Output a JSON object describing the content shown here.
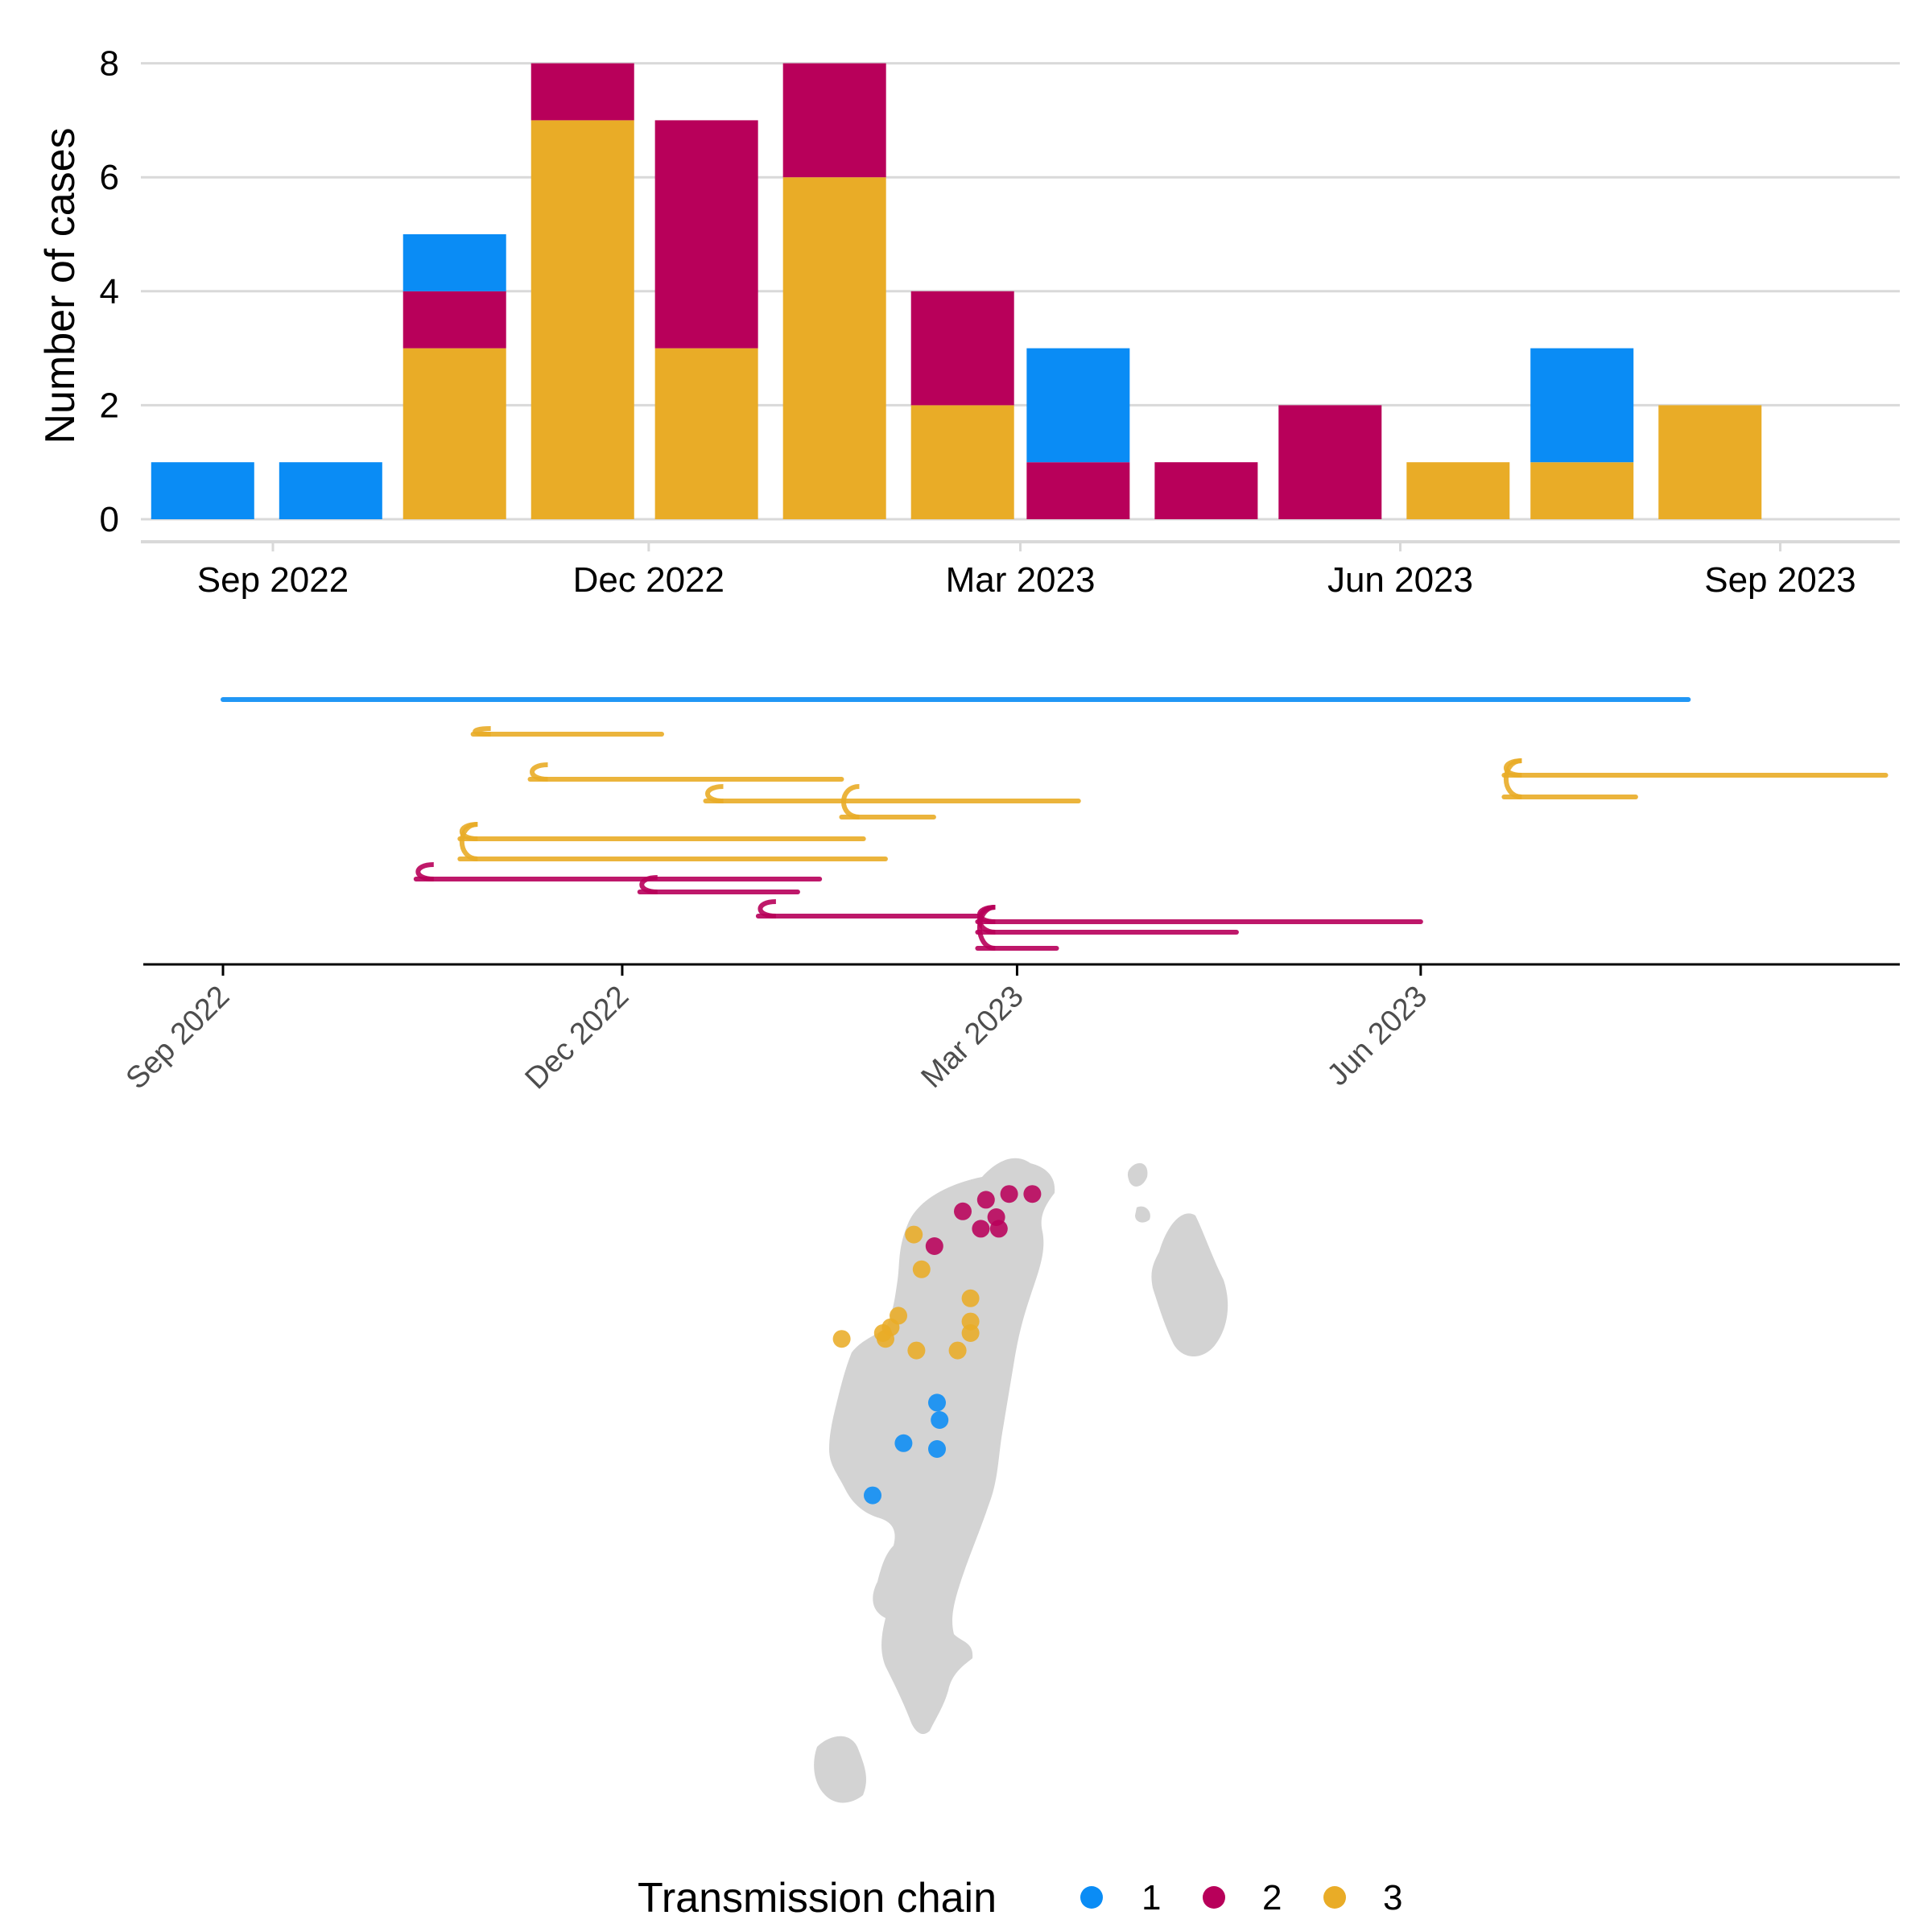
{
  "colors": {
    "chain_1": "#0A8CF5",
    "chain_2": "#B8005A",
    "chain_3": "#E9AC27",
    "grid": "#D9D9D9",
    "land": "#D3D3D3"
  },
  "chart_data": [
    {
      "type": "bar",
      "stacked": true,
      "ylabel": "Number of cases",
      "ylim": [
        0,
        8
      ],
      "y_ticks": [
        "0",
        "2",
        "4",
        "6",
        "8"
      ],
      "x_tick_labels": [
        "Sep 2022",
        "Dec 2022",
        "Mar 2023",
        "Jun 2023",
        "Sep 2023"
      ],
      "categories": [
        "2022-08-15",
        "2022-09-15",
        "2022-10-15",
        "2022-11-15",
        "2022-12-15",
        "2023-01-15",
        "2023-02-15",
        "2023-03-15",
        "2023-04-15",
        "2023-05-15",
        "2023-06-15",
        "2023-07-15",
        "2023-08-15"
      ],
      "series": [
        {
          "name": "3",
          "values": [
            0,
            0,
            3,
            7,
            3,
            6,
            2,
            0,
            0,
            0,
            1,
            1,
            2
          ]
        },
        {
          "name": "2",
          "values": [
            0,
            0,
            1,
            1,
            4,
            2,
            2,
            1,
            1,
            2,
            0,
            0,
            0
          ]
        },
        {
          "name": "1",
          "values": [
            1,
            1,
            1,
            0,
            0,
            0,
            0,
            2,
            0,
            0,
            0,
            2,
            0
          ]
        }
      ],
      "grid": "horizontal"
    },
    {
      "type": "line",
      "description_kind": "transmission tree timeline",
      "x_tick_labels": [
        "Sep 2022",
        "Dec 2022",
        "Mar 2023",
        "Jun 2023"
      ],
      "branches": [
        {
          "chain": "1",
          "start": "2022-09-01",
          "end": "2023-08-01"
        },
        {
          "chain": "3",
          "start": "2022-10-28",
          "end": "2022-12-10"
        },
        {
          "chain": "3",
          "start": "2022-11-10",
          "end": "2023-01-20"
        },
        {
          "chain": "3",
          "start": "2022-12-20",
          "end": "2023-03-15"
        },
        {
          "chain": "3",
          "start": "2023-01-20",
          "end": "2023-02-10"
        },
        {
          "chain": "3",
          "start": "2023-06-20",
          "end": "2023-09-15"
        },
        {
          "chain": "3",
          "start": "2023-06-20",
          "end": "2023-07-20"
        },
        {
          "chain": "3",
          "start": "2022-10-25",
          "end": "2023-01-25"
        },
        {
          "chain": "3",
          "start": "2022-10-25",
          "end": "2023-01-30"
        },
        {
          "chain": "2",
          "start": "2022-10-15",
          "end": "2023-01-15"
        },
        {
          "chain": "2",
          "start": "2022-12-05",
          "end": "2023-01-10"
        },
        {
          "chain": "2",
          "start": "2023-01-01",
          "end": "2023-02-20"
        },
        {
          "chain": "2",
          "start": "2023-02-20",
          "end": "2023-06-01"
        },
        {
          "chain": "2",
          "start": "2023-02-20",
          "end": "2023-04-20"
        },
        {
          "chain": "2",
          "start": "2023-02-20",
          "end": "2023-03-10"
        }
      ]
    },
    {
      "type": "scatter",
      "description_kind": "case locations map",
      "points": [
        {
          "chain": "2",
          "x": 0.73,
          "y": 0.94
        },
        {
          "chain": "2",
          "x": 0.82,
          "y": 0.94
        },
        {
          "chain": "2",
          "x": 0.64,
          "y": 0.93
        },
        {
          "chain": "2",
          "x": 0.55,
          "y": 0.91
        },
        {
          "chain": "2",
          "x": 0.68,
          "y": 0.9
        },
        {
          "chain": "2",
          "x": 0.62,
          "y": 0.88
        },
        {
          "chain": "2",
          "x": 0.69,
          "y": 0.88
        },
        {
          "chain": "2",
          "x": 0.44,
          "y": 0.85
        },
        {
          "chain": "3",
          "x": 0.36,
          "y": 0.87
        },
        {
          "chain": "3",
          "x": 0.39,
          "y": 0.81
        },
        {
          "chain": "3",
          "x": 0.58,
          "y": 0.76
        },
        {
          "chain": "3",
          "x": 0.3,
          "y": 0.73
        },
        {
          "chain": "3",
          "x": 0.27,
          "y": 0.71
        },
        {
          "chain": "3",
          "x": 0.24,
          "y": 0.7
        },
        {
          "chain": "3",
          "x": 0.58,
          "y": 0.72
        },
        {
          "chain": "3",
          "x": 0.58,
          "y": 0.7
        },
        {
          "chain": "3",
          "x": 0.25,
          "y": 0.69
        },
        {
          "chain": "3",
          "x": 0.08,
          "y": 0.69
        },
        {
          "chain": "3",
          "x": 0.37,
          "y": 0.67
        },
        {
          "chain": "3",
          "x": 0.53,
          "y": 0.67
        },
        {
          "chain": "1",
          "x": 0.45,
          "y": 0.58
        },
        {
          "chain": "1",
          "x": 0.46,
          "y": 0.55
        },
        {
          "chain": "1",
          "x": 0.32,
          "y": 0.51
        },
        {
          "chain": "1",
          "x": 0.45,
          "y": 0.5
        },
        {
          "chain": "1",
          "x": 0.2,
          "y": 0.42
        }
      ]
    }
  ],
  "legend": {
    "title": "Transmission chain",
    "items": [
      {
        "label": "1",
        "color": "#0A8CF5"
      },
      {
        "label": "2",
        "color": "#B8005A"
      },
      {
        "label": "3",
        "color": "#E9AC27"
      }
    ]
  }
}
